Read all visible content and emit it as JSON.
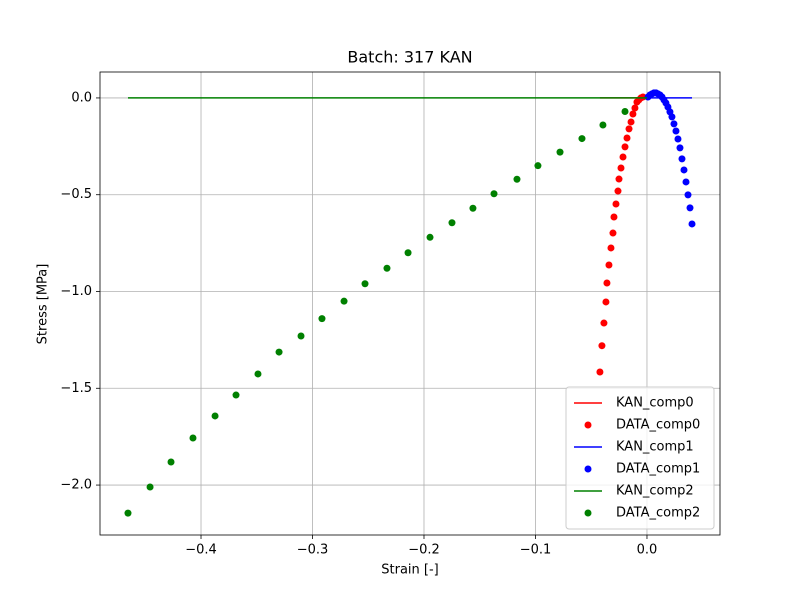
{
  "chart_data": {
    "type": "scatter",
    "title": "Batch: 317 KAN",
    "x_label": "Strain [-]",
    "y_label": "Stress [MPa]",
    "xlim": [
      -0.4906,
      0.0655
    ],
    "ylim": [
      -2.258,
      0.134
    ],
    "xticks": [
      {
        "value": -0.4,
        "label": "−0.4"
      },
      {
        "value": -0.3,
        "label": "−0.3"
      },
      {
        "value": -0.2,
        "label": "−0.2"
      },
      {
        "value": -0.1,
        "label": "−0.1"
      },
      {
        "value": 0,
        "label": "0.0"
      }
    ],
    "yticks": [
      {
        "value": 0,
        "label": "0.0"
      },
      {
        "value": -0.5,
        "label": "−0.5"
      },
      {
        "value": -1,
        "label": "−1.0"
      },
      {
        "value": -1.5,
        "label": "−1.5"
      },
      {
        "value": -2,
        "label": "−2.0"
      }
    ],
    "grid": true,
    "legend": "lower right",
    "series": [
      {
        "name": "KAN_comp0",
        "type": "line",
        "color": "#ff0000",
        "x": [
          -0.0422,
          0
        ],
        "values": [
          0,
          0
        ]
      },
      {
        "name": "DATA_comp0",
        "type": "scatter",
        "color": "#ff0000",
        "x": [
          -0.0422,
          -0.0404,
          -0.0386,
          -0.0368,
          -0.0359,
          -0.0341,
          -0.0323,
          -0.0305,
          -0.0296,
          -0.0278,
          -0.026,
          -0.0251,
          -0.0233,
          -0.0215,
          -0.0197,
          -0.0179,
          -0.0161,
          -0.0143,
          -0.0126,
          -0.0108,
          -0.009,
          -0.0072,
          -0.0054,
          -0.0036
        ],
        "values": [
          -1.416,
          -1.28,
          -1.163,
          -1.054,
          -0.956,
          -0.863,
          -0.775,
          -0.698,
          -0.615,
          -0.548,
          -0.481,
          -0.419,
          -0.362,
          -0.305,
          -0.253,
          -0.207,
          -0.16,
          -0.124,
          -0.083,
          -0.052,
          -0.021,
          -0.01,
          0,
          0.005
        ]
      },
      {
        "name": "KAN_comp1",
        "type": "line",
        "color": "#0000ff",
        "x": [
          0,
          0.0404
        ],
        "values": [
          0,
          0
        ]
      },
      {
        "name": "DATA_comp1",
        "type": "scatter",
        "color": "#0000ff",
        "x": [
          0.0009,
          0.0027,
          0.0045,
          0.0063,
          0.0081,
          0.0099,
          0.0117,
          0.0135,
          0.0152,
          0.017,
          0.0188,
          0.0206,
          0.0224,
          0.0242,
          0.026,
          0.0278,
          0.0296,
          0.0314,
          0.0332,
          0.035,
          0.0368,
          0.0386,
          0.0404
        ],
        "values": [
          0.005,
          0.015,
          0.021,
          0.026,
          0.026,
          0.021,
          0.015,
          0.005,
          -0.01,
          -0.026,
          -0.047,
          -0.072,
          -0.098,
          -0.134,
          -0.171,
          -0.212,
          -0.258,
          -0.315,
          -0.372,
          -0.434,
          -0.501,
          -0.568,
          -0.651
        ]
      },
      {
        "name": "KAN_comp2",
        "type": "line",
        "color": "#008000",
        "x": [
          -0.4655,
          0
        ],
        "values": [
          0,
          0
        ]
      },
      {
        "name": "DATA_comp2",
        "type": "scatter",
        "color": "#008000",
        "x": [
          -0.4655,
          -0.4457,
          -0.4269,
          -0.4072,
          -0.3874,
          -0.3686,
          -0.3489,
          -0.33,
          -0.3103,
          -0.2915,
          -0.2717,
          -0.2529,
          -0.2332,
          -0.2143,
          -0.1946,
          -0.1749,
          -0.1561,
          -0.1372,
          -0.1166,
          -0.0978,
          -0.078,
          -0.0583,
          -0.0395,
          -0.0197
        ],
        "values": [
          -2.145,
          -2.01,
          -1.881,
          -1.757,
          -1.643,
          -1.535,
          -1.426,
          -1.313,
          -1.23,
          -1.14,
          -1.05,
          -0.96,
          -0.88,
          -0.8,
          -0.72,
          -0.645,
          -0.57,
          -0.495,
          -0.42,
          -0.35,
          -0.28,
          -0.21,
          -0.14,
          -0.07
        ]
      }
    ]
  }
}
